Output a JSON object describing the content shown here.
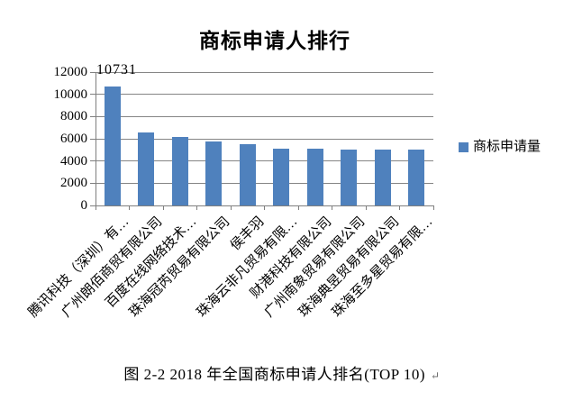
{
  "title": "商标申请人排行",
  "legend": {
    "label": "商标申请量",
    "swatch_color": "#4F81BD"
  },
  "caption": {
    "text": "图 2-2 2018 年全国商标申请人排名(TOP 10)",
    "return_mark": "↵"
  },
  "chart_data": {
    "type": "bar",
    "title": "商标申请人排行",
    "categories": [
      "腾讯科技（深圳）有…",
      "广州朗佰商贸有限公司",
      "百度在线网络技术…",
      "珠海冠芮贸易有限公司",
      "侯丰羽",
      "珠海云非凡贸易有限…",
      "财港科技有限公司",
      "广州南象贸易有限公司",
      "珠海典昱贸易有限公司",
      "珠海至多星贸易有限…"
    ],
    "series": [
      {
        "name": "商标申请量",
        "values": [
          10731,
          6600,
          6150,
          5790,
          5490,
          5110,
          5100,
          5040,
          5030,
          5020
        ]
      }
    ],
    "data_labels": [
      {
        "index": 0,
        "text": "10731"
      }
    ],
    "xlabel": "",
    "ylabel": "",
    "ylim": [
      0,
      12000
    ],
    "yticks": [
      0,
      2000,
      4000,
      6000,
      8000,
      10000,
      12000
    ],
    "grid": true,
    "legend_position": "right",
    "bar_color": "#4F81BD",
    "gridline_color": "#858585",
    "axis_color": "#7f7f7f"
  }
}
